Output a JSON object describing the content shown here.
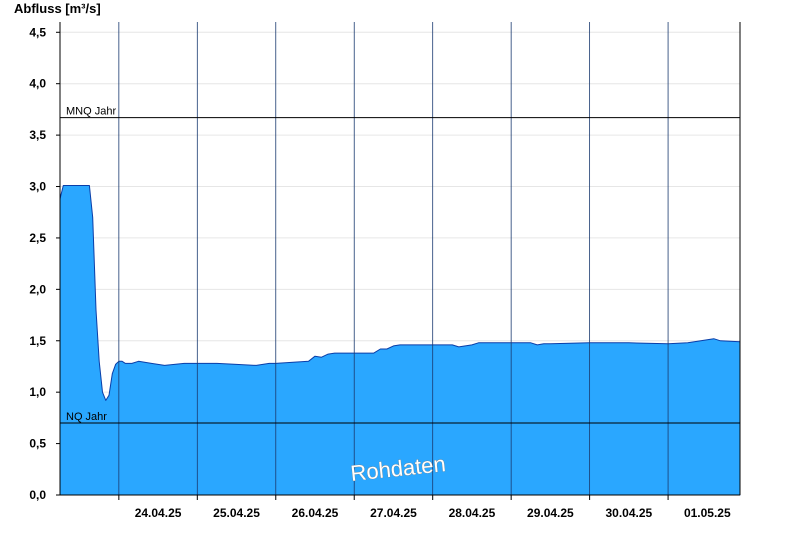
{
  "chart_data": {
    "type": "area",
    "ylabel": "Abfluss [m³/s]",
    "ylim": [
      0,
      4.6
    ],
    "y_ticks": [
      0,
      0.5,
      1.0,
      1.5,
      2.0,
      2.5,
      3.0,
      3.5,
      4.0,
      4.5
    ],
    "y_tick_labels": [
      "0,0",
      "0,5",
      "1,0",
      "1,5",
      "2,0",
      "2,5",
      "3,0",
      "3,5",
      "4,0",
      "4,5"
    ],
    "xlim": [
      "2025-04-23T06:00",
      "2025-05-01T22:00"
    ],
    "x_day_boundaries": [
      "2025-04-24T00:00",
      "2025-04-25T00:00",
      "2025-04-26T00:00",
      "2025-04-27T00:00",
      "2025-04-28T00:00",
      "2025-04-29T00:00",
      "2025-04-30T00:00",
      "2025-05-01T00:00"
    ],
    "x_tick_labels": [
      "24.04.25",
      "25.04.25",
      "26.04.25",
      "27.04.25",
      "28.04.25",
      "29.04.25",
      "30.04.25",
      "01.05.25"
    ],
    "fill_color": "#2aa7ff",
    "grid": true,
    "reference_lines": [
      {
        "label": "MNQ Jahr",
        "value": 3.67
      },
      {
        "label": "NQ Jahr",
        "value": 0.7
      }
    ],
    "watermark": "Rohdaten",
    "series": [
      {
        "x": [
          "2025-04-23T06:00",
          "2025-04-23T07:00",
          "2025-04-23T08:00",
          "2025-04-23T15:00",
          "2025-04-23T16:00",
          "2025-04-23T17:00",
          "2025-04-23T18:00",
          "2025-04-23T19:00",
          "2025-04-23T20:00",
          "2025-04-23T21:00",
          "2025-04-23T22:00",
          "2025-04-23T23:00",
          "2025-04-24T00:00",
          "2025-04-24T01:00",
          "2025-04-24T02:00",
          "2025-04-24T04:00",
          "2025-04-24T06:00",
          "2025-04-24T10:00",
          "2025-04-24T14:00",
          "2025-04-24T20:00",
          "2025-04-25T00:00",
          "2025-04-25T04:00",
          "2025-04-25T06:00",
          "2025-04-25T12:00",
          "2025-04-25T18:00",
          "2025-04-25T22:00",
          "2025-04-26T00:00",
          "2025-04-26T10:00",
          "2025-04-26T12:00",
          "2025-04-26T14:00",
          "2025-04-26T16:00",
          "2025-04-26T18:00",
          "2025-04-26T20:00",
          "2025-04-27T00:00",
          "2025-04-27T06:00",
          "2025-04-27T08:00",
          "2025-04-27T10:00",
          "2025-04-27T12:00",
          "2025-04-27T14:00",
          "2025-04-27T16:00",
          "2025-04-28T00:00",
          "2025-04-28T06:00",
          "2025-04-28T08:00",
          "2025-04-28T12:00",
          "2025-04-28T14:00",
          "2025-04-29T00:00",
          "2025-04-29T06:00",
          "2025-04-29T08:00",
          "2025-04-29T10:00",
          "2025-04-29T12:00",
          "2025-04-30T00:00",
          "2025-04-30T02:00",
          "2025-04-30T04:00",
          "2025-04-30T06:00",
          "2025-04-30T12:00",
          "2025-05-01T00:00",
          "2025-05-01T06:00",
          "2025-05-01T10:00",
          "2025-05-01T14:00",
          "2025-05-01T16:00",
          "2025-05-01T22:00"
        ],
        "values": [
          2.88,
          3.01,
          3.01,
          3.01,
          2.7,
          1.8,
          1.3,
          1.0,
          0.92,
          0.97,
          1.18,
          1.27,
          1.3,
          1.3,
          1.28,
          1.28,
          1.3,
          1.28,
          1.26,
          1.28,
          1.28,
          1.28,
          1.28,
          1.27,
          1.26,
          1.28,
          1.28,
          1.3,
          1.35,
          1.34,
          1.37,
          1.38,
          1.38,
          1.38,
          1.38,
          1.42,
          1.42,
          1.45,
          1.46,
          1.46,
          1.46,
          1.46,
          1.44,
          1.46,
          1.48,
          1.48,
          1.48,
          1.46,
          1.47,
          1.47,
          1.48,
          1.48,
          1.48,
          1.48,
          1.48,
          1.47,
          1.48,
          1.5,
          1.52,
          1.5,
          1.49
        ]
      }
    ]
  }
}
